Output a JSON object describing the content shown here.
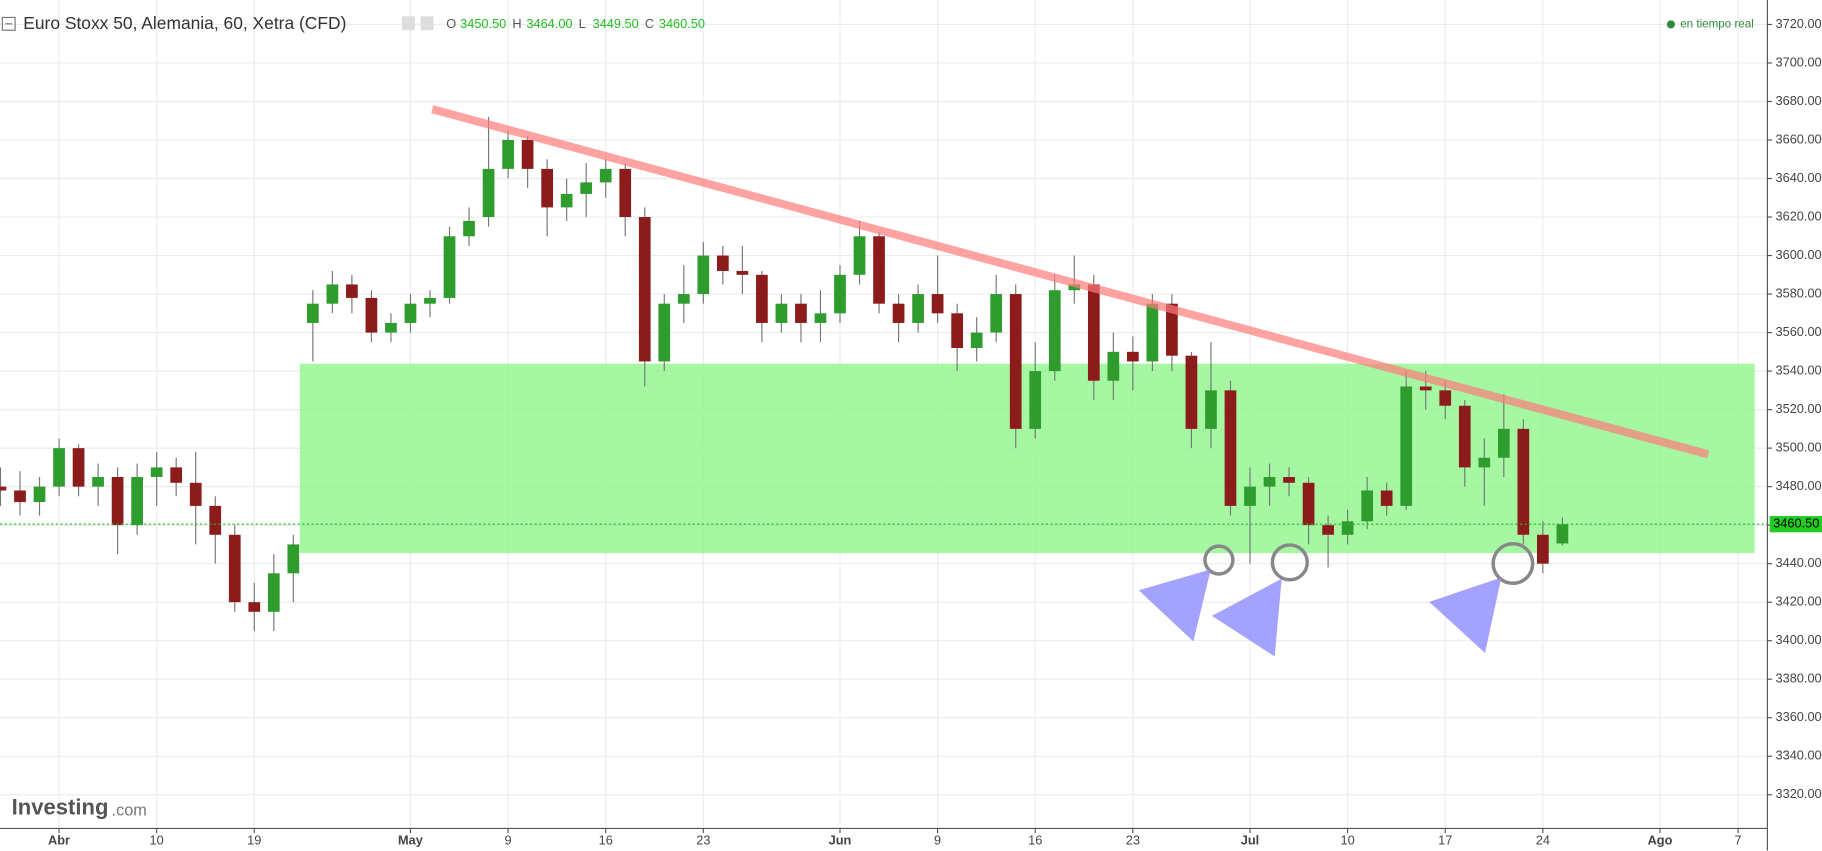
{
  "chart_data": {
    "type": "candlestick",
    "title": "Euro Stoxx 50, Alemania, 60, Xetra (CFD)",
    "ohlc_header": [
      {
        "key": "O",
        "value": "3450.50"
      },
      {
        "key": "H",
        "value": "3464.00"
      },
      {
        "key": "L",
        "value": "3449.50"
      },
      {
        "key": "C",
        "value": "3460.50"
      }
    ],
    "status": "en tiempo real",
    "watermark": {
      "brand": "Investing",
      "suffix": ".com"
    },
    "categories": [
      null,
      null,
      null,
      "Abr",
      null,
      null,
      null,
      null,
      "10",
      null,
      null,
      null,
      null,
      "19",
      null,
      null,
      null,
      null,
      null,
      null,
      null,
      "May",
      null,
      null,
      null,
      null,
      "9",
      null,
      null,
      null,
      null,
      "16",
      null,
      null,
      null,
      null,
      "23",
      null,
      null,
      null,
      null,
      null,
      null,
      "Jun",
      null,
      null,
      null,
      null,
      "9",
      null,
      null,
      null,
      null,
      "16",
      null,
      null,
      null,
      null,
      "23",
      null,
      null,
      null,
      null,
      null,
      "Jul",
      null,
      null,
      null,
      null,
      "10",
      null,
      null,
      null,
      null,
      "17",
      null,
      null,
      null,
      null,
      "24",
      null,
      null,
      null,
      null,
      null,
      "Ago",
      null,
      null,
      null,
      "7",
      null
    ],
    "open": [
      3480,
      3478,
      3472,
      3480,
      3500,
      3480,
      3485,
      3460,
      3485,
      3490,
      3482,
      3470,
      3455,
      3420,
      3415,
      3435,
      3565,
      3575,
      3585,
      3578,
      3560,
      3565,
      3575,
      3578,
      3610,
      3620,
      3645,
      3660,
      3645,
      3625,
      3632,
      3638,
      3645,
      3620,
      3545,
      3575,
      3580,
      3600,
      3592,
      3590,
      3565,
      3575,
      3565,
      3570,
      3590,
      3610,
      3575,
      3565,
      3580,
      3570,
      3552,
      3560,
      3580,
      3510,
      3540,
      3582,
      3585,
      3535,
      3550,
      3545,
      3575,
      3548,
      3510,
      3530,
      3470,
      3480,
      3485,
      3482,
      3460,
      3455,
      3462,
      3478,
      3470,
      3532,
      3530,
      3522,
      3490,
      3495,
      3510,
      3455,
      3450.5,
      null,
      null,
      null,
      null,
      null,
      null,
      null,
      null,
      null,
      null
    ],
    "high": [
      3490,
      3488,
      3485,
      3505,
      3502,
      3492,
      3490,
      3492,
      3498,
      3495,
      3498,
      3475,
      3460,
      3430,
      3445,
      3455,
      3582,
      3592,
      3590,
      3582,
      3570,
      3580,
      3582,
      3615,
      3625,
      3672,
      3665,
      3662,
      3650,
      3640,
      3648,
      3650,
      3648,
      3625,
      3580,
      3595,
      3607,
      3605,
      3605,
      3592,
      3580,
      3580,
      3582,
      3595,
      3618,
      3612,
      3580,
      3585,
      3600,
      3575,
      3568,
      3590,
      3585,
      3555,
      3590,
      3600,
      3590,
      3560,
      3558,
      3580,
      3580,
      3550,
      3555,
      3535,
      3490,
      3492,
      3490,
      3485,
      3465,
      3468,
      3485,
      3482,
      3540,
      3540,
      3535,
      3525,
      3505,
      3528,
      3515,
      3462,
      3464,
      null,
      null,
      null,
      null,
      null,
      null,
      null,
      null,
      null,
      null
    ],
    "low": [
      3470,
      3465,
      3465,
      3475,
      3475,
      3470,
      3445,
      3455,
      3470,
      3475,
      3450,
      3440,
      3415,
      3405,
      3405,
      3420,
      3545,
      3570,
      3570,
      3555,
      3555,
      3560,
      3568,
      3575,
      3605,
      3615,
      3640,
      3635,
      3610,
      3618,
      3620,
      3630,
      3610,
      3532,
      3540,
      3565,
      3575,
      3585,
      3580,
      3555,
      3560,
      3555,
      3555,
      3565,
      3585,
      3570,
      3555,
      3560,
      3565,
      3540,
      3545,
      3555,
      3500,
      3505,
      3535,
      3575,
      3525,
      3525,
      3530,
      3540,
      3540,
      3500,
      3500,
      3465,
      3440,
      3470,
      3475,
      3450,
      3438,
      3450,
      3458,
      3465,
      3468,
      3520,
      3515,
      3480,
      3470,
      3485,
      3450,
      3435,
      3449.5,
      null,
      null,
      null,
      null,
      null,
      null,
      null,
      null,
      null,
      null
    ],
    "close": [
      3478,
      3472,
      3480,
      3500,
      3480,
      3485,
      3460,
      3485,
      3490,
      3482,
      3470,
      3455,
      3420,
      3415,
      3435,
      3450,
      3575,
      3585,
      3578,
      3560,
      3565,
      3575,
      3578,
      3610,
      3618,
      3645,
      3660,
      3645,
      3625,
      3632,
      3638,
      3645,
      3620,
      3545,
      3575,
      3580,
      3600,
      3592,
      3590,
      3565,
      3575,
      3565,
      3570,
      3590,
      3610,
      3575,
      3565,
      3580,
      3570,
      3552,
      3560,
      3580,
      3510,
      3540,
      3582,
      3585,
      3535,
      3550,
      3545,
      3575,
      3548,
      3510,
      3530,
      3470,
      3480,
      3485,
      3482,
      3460,
      3455,
      3462,
      3478,
      3470,
      3532,
      3530,
      3522,
      3490,
      3495,
      3510,
      3455,
      3440,
      3460.5,
      null,
      null,
      null,
      null,
      null,
      null,
      null,
      null,
      null,
      null
    ],
    "up_color": "#2e9d2e",
    "down_color": "#8c1c1c",
    "ylim": [
      3302.5,
      3732.7
    ],
    "yticks": [
      {
        "value": 3320,
        "label": "3320.00"
      },
      {
        "value": 3340,
        "label": "3340.00"
      },
      {
        "value": 3360,
        "label": "3360.00"
      },
      {
        "value": 3380,
        "label": "3380.00"
      },
      {
        "value": 3400,
        "label": "3400.00"
      },
      {
        "value": 3420,
        "label": "3420.00"
      },
      {
        "value": 3440,
        "label": "3440.00"
      },
      {
        "value": 3460,
        "label": "3460.00"
      },
      {
        "value": 3480,
        "label": "3480.00"
      },
      {
        "value": 3500,
        "label": "3500.00"
      },
      {
        "value": 3520,
        "label": "3520.00"
      },
      {
        "value": 3540,
        "label": "3540.00"
      },
      {
        "value": 3560,
        "label": "3560.00"
      },
      {
        "value": 3580,
        "label": "3580.00"
      },
      {
        "value": 3600,
        "label": "3600.00"
      },
      {
        "value": 3620,
        "label": "3620.00"
      },
      {
        "value": 3640,
        "label": "3640.00"
      },
      {
        "value": 3660,
        "label": "3660.00"
      },
      {
        "value": 3680,
        "label": "3680.00"
      },
      {
        "value": 3700,
        "label": "3700.00"
      },
      {
        "value": 3720,
        "label": "3720.00"
      }
    ],
    "grid": true,
    "last_price": {
      "value": 3460.5,
      "label": "3460.50"
    }
  }
}
